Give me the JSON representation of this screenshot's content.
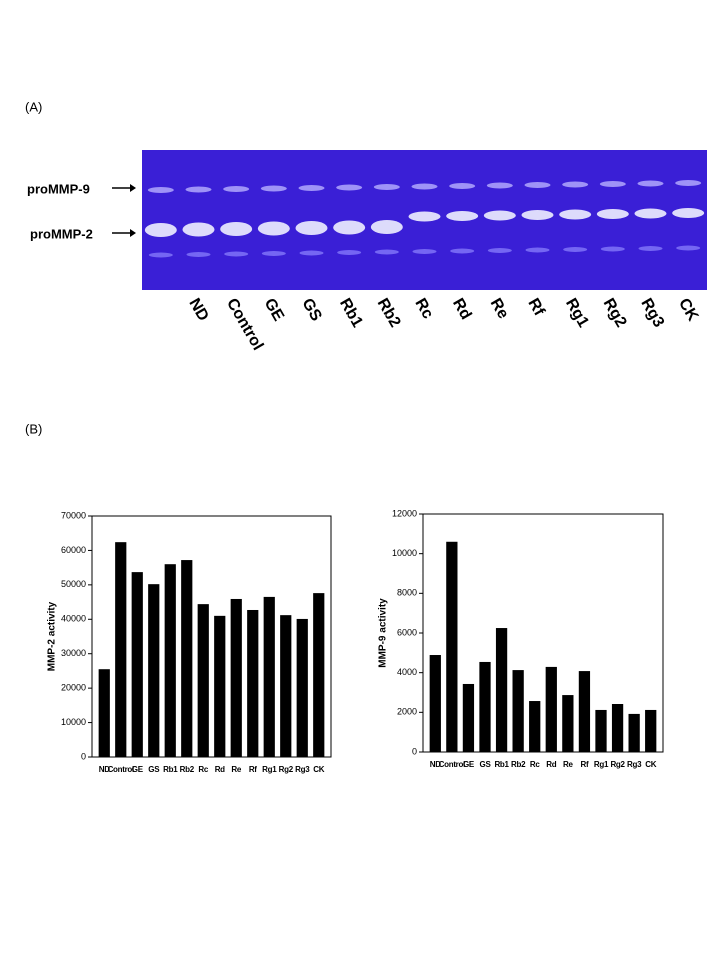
{
  "panel_a": {
    "label": "(A)",
    "band_labels": [
      "proMMP-9",
      "proMMP-2"
    ],
    "lanes": [
      "ND",
      "Control",
      "GE",
      "GS",
      "Rb1",
      "Rb2",
      "Rc",
      "Rd",
      "Re",
      "Rf",
      "Rg1",
      "Rg2",
      "Rg3",
      "CK"
    ]
  },
  "panel_b": {
    "label": "(B)"
  },
  "chart_data": [
    {
      "type": "bar",
      "y_label": "MMP-2 activity",
      "categories": [
        "ND",
        "Control",
        "GE",
        "GS",
        "Rb1",
        "Rb2",
        "Rc",
        "Rd",
        "Re",
        "Rf",
        "Rg1",
        "Rg2",
        "Rg3",
        "CK"
      ],
      "values": [
        25500,
        62400,
        53700,
        50200,
        56000,
        57200,
        44400,
        41000,
        45900,
        42700,
        46500,
        41200,
        40100,
        47600
      ],
      "color": "#000000",
      "ylim": [
        0,
        70000
      ],
      "yticks": [
        0,
        10000,
        20000,
        30000,
        40000,
        50000,
        60000,
        70000
      ]
    },
    {
      "type": "bar",
      "y_label": "MMP-9 activity",
      "categories": [
        "ND",
        "Control",
        "GE",
        "GS",
        "Rb1",
        "Rb2",
        "Rc",
        "Rd",
        "Re",
        "Rf",
        "Rg1",
        "Rg2",
        "Rg3",
        "CK"
      ],
      "values": [
        4890,
        10600,
        3430,
        4540,
        6250,
        4130,
        2570,
        4290,
        2870,
        4080,
        2120,
        2420,
        1920,
        2120
      ],
      "color": "#000000",
      "ylim": [
        0,
        12000
      ],
      "yticks": [
        0,
        2000,
        4000,
        6000,
        8000,
        10000,
        12000
      ]
    }
  ]
}
